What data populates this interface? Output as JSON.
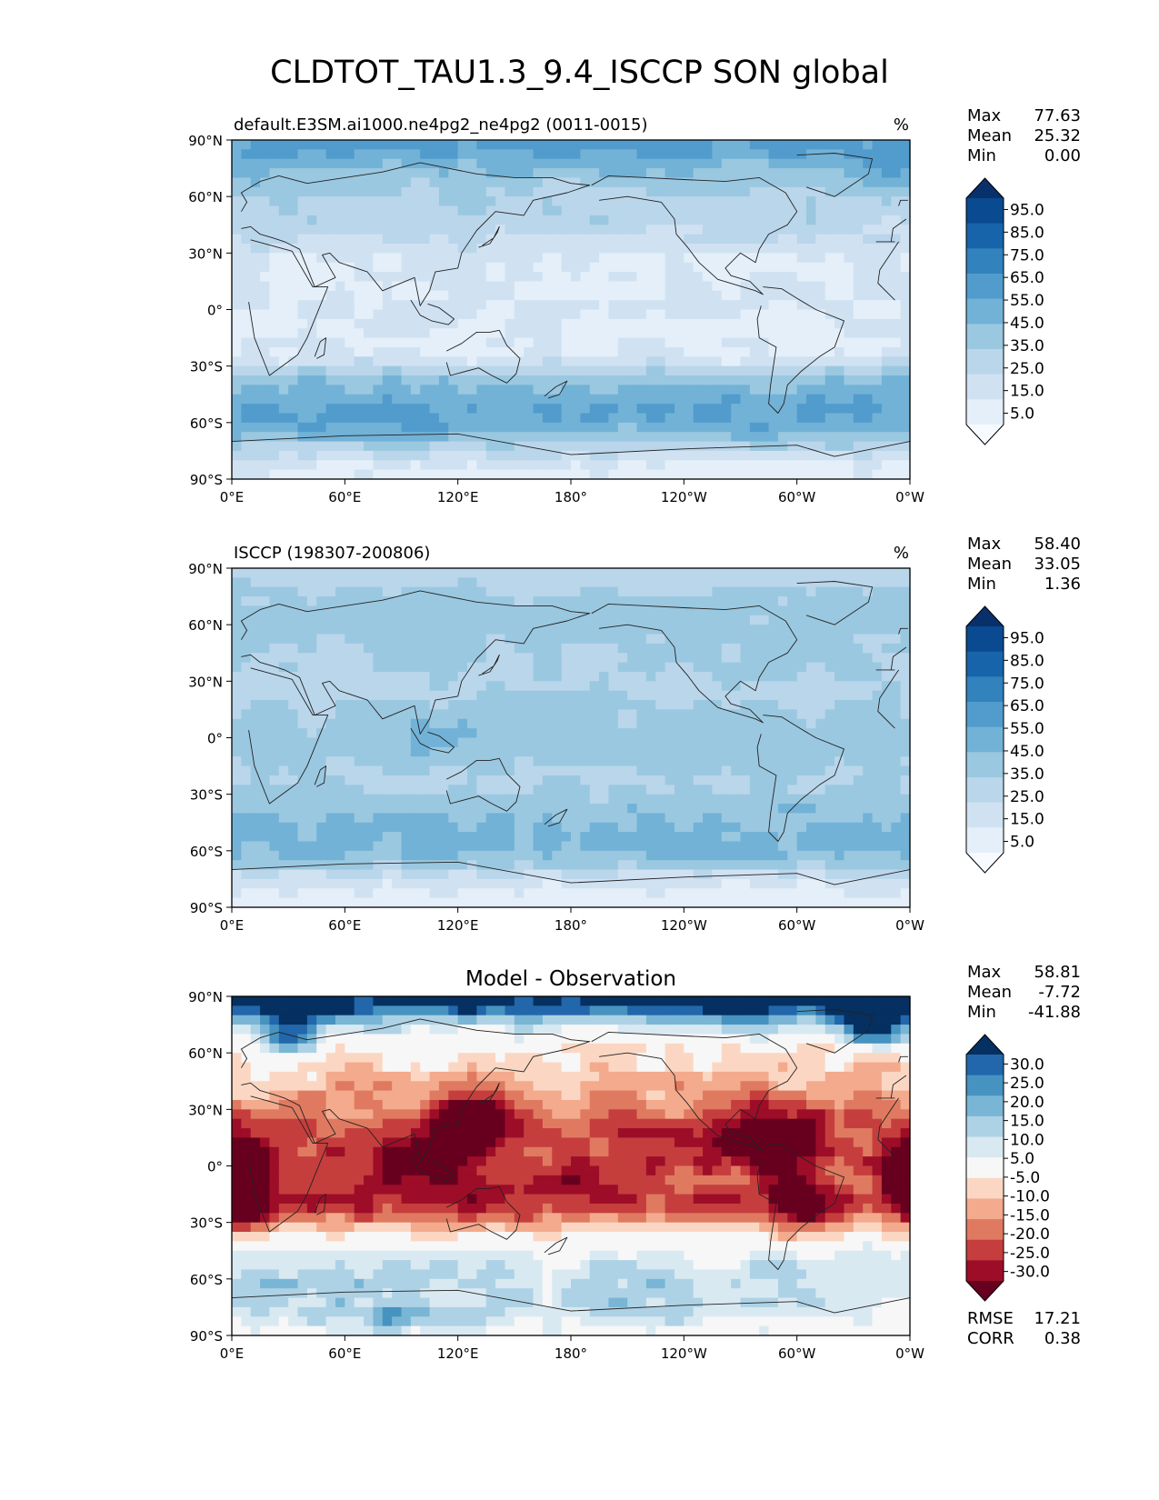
{
  "figure": {
    "title": "CLDTOT_TAU1.3_9.4_ISCCP SON global"
  },
  "axes": {
    "lat_ticks": [
      "90°N",
      "60°N",
      "30°N",
      "0°",
      "30°S",
      "60°S",
      "90°S"
    ],
    "lon_ticks": [
      "0°E",
      "60°E",
      "120°E",
      "180°",
      "120°W",
      "60°W",
      "0°W"
    ]
  },
  "colors": {
    "blues_scale": [
      "#f7fbff",
      "#e4eff9",
      "#d0e2f2",
      "#bad6eb",
      "#9ac8e0",
      "#72b2d7",
      "#519ccc",
      "#3282be",
      "#1864aa",
      "#0a4a90",
      "#08306b"
    ],
    "diff_scale": [
      "#67001f",
      "#9d0d28",
      "#c53e3d",
      "#df7a61",
      "#f3aa8d",
      "#fbd7c3",
      "#f7f7f7",
      "#d9e9f1",
      "#aed2e5",
      "#79b6d5",
      "#4693c1",
      "#2267ab",
      "#053061"
    ],
    "coastline": "#222222"
  },
  "chart_data": [
    {
      "type": "heatmap",
      "name": "panel-model",
      "title": "default.E3SM.ai1000.ne4pg2_ne4pg2 (0011-0015)",
      "units": "%",
      "stats": [
        {
          "label": "Max",
          "value": "77.63"
        },
        {
          "label": "Mean",
          "value": "25.32"
        },
        {
          "label": "Min",
          "value": "0.00"
        }
      ],
      "colorbar_labels": [
        "95.0",
        "85.0",
        "75.0",
        "65.0",
        "55.0",
        "45.0",
        "35.0",
        "25.0",
        "15.0",
        "5.0"
      ],
      "xlim": [
        0,
        360
      ],
      "ylim": [
        -90,
        90
      ],
      "lat": [
        85,
        75,
        65,
        55,
        45,
        35,
        25,
        15,
        5,
        -5,
        -15,
        -25,
        -35,
        -45,
        -55,
        -65,
        -75,
        -85
      ],
      "zonal_mean": [
        58,
        45,
        37,
        32,
        30,
        24,
        14,
        16,
        18,
        16,
        14,
        14,
        38,
        50,
        55,
        48,
        28,
        12
      ]
    },
    {
      "type": "heatmap",
      "name": "panel-obs",
      "title": "ISCCP (198307-200806)",
      "units": "%",
      "stats": [
        {
          "label": "Max",
          "value": "58.40"
        },
        {
          "label": "Mean",
          "value": "33.05"
        },
        {
          "label": "Min",
          "value": "1.36"
        }
      ],
      "colorbar_labels": [
        "95.0",
        "85.0",
        "75.0",
        "65.0",
        "55.0",
        "45.0",
        "35.0",
        "25.0",
        "15.0",
        "5.0"
      ],
      "xlim": [
        0,
        360
      ],
      "ylim": [
        -90,
        90
      ],
      "lat": [
        85,
        75,
        65,
        55,
        45,
        35,
        25,
        15,
        5,
        -5,
        -15,
        -25,
        -35,
        -45,
        -55,
        -65,
        -75,
        -85
      ],
      "zonal_mean": [
        30,
        38,
        40,
        38,
        36,
        34,
        32,
        33,
        38,
        40,
        36,
        34,
        40,
        46,
        48,
        42,
        20,
        10
      ]
    },
    {
      "type": "heatmap",
      "name": "panel-diff",
      "title": "Model - Observation",
      "units": "",
      "stats": [
        {
          "label": "Max",
          "value": "58.81"
        },
        {
          "label": "Mean",
          "value": "-7.72"
        },
        {
          "label": "Min",
          "value": "-41.88"
        }
      ],
      "extra_stats": [
        {
          "label": "RMSE",
          "value": "17.21"
        },
        {
          "label": "CORR",
          "value": "0.38"
        }
      ],
      "colorbar_labels": [
        "30.0",
        "25.0",
        "20.0",
        "15.0",
        "10.0",
        "5.0",
        "-5.0",
        "-10.0",
        "-15.0",
        "-20.0",
        "-25.0",
        "-30.0"
      ],
      "xlim": [
        0,
        360
      ],
      "ylim": [
        -90,
        90
      ],
      "lat": [
        85,
        75,
        65,
        55,
        45,
        35,
        25,
        15,
        5,
        -5,
        -15,
        -25,
        -35,
        -45,
        -55,
        -65,
        -75,
        -85
      ],
      "zonal_mean": [
        34,
        10,
        -2,
        -8,
        -10,
        -14,
        -20,
        -22,
        -22,
        -20,
        -22,
        -22,
        -6,
        4,
        10,
        10,
        8,
        2
      ]
    }
  ]
}
